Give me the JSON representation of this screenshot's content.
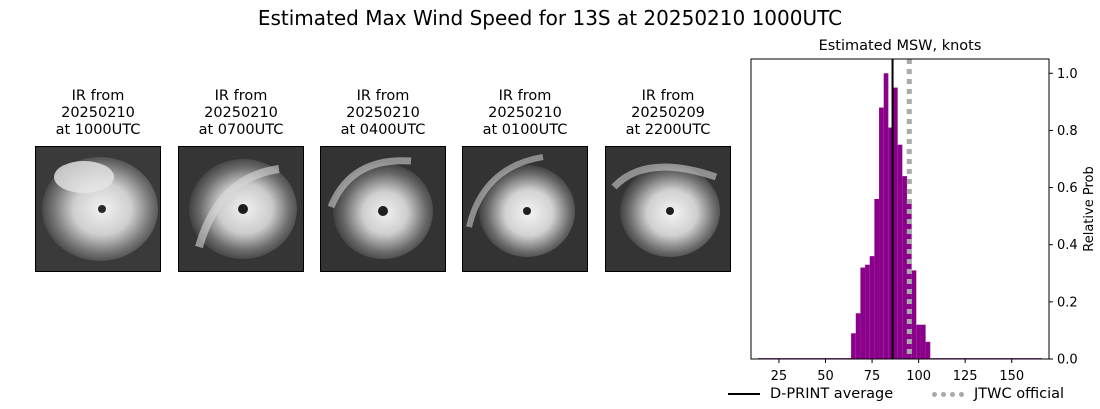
{
  "figure": {
    "title": "Estimated Max Wind Speed for 13S at 20250210 1000UTC"
  },
  "ir_panels": [
    {
      "caption": "IR from\n20250210\nat 1000UTC"
    },
    {
      "caption": "IR from\n20250210\nat 0700UTC"
    },
    {
      "caption": "IR from\n20250210\nat 0400UTC"
    },
    {
      "caption": "IR from\n20250210\nat 0100UTC"
    },
    {
      "caption": "IR from\n20250209\nat 2200UTC"
    }
  ],
  "chart_data": {
    "type": "bar",
    "title": "Estimated MSW, knots",
    "xlabel": "",
    "ylabel": "Relative Prob",
    "xlim": [
      10,
      170
    ],
    "ylim": [
      0,
      1.05
    ],
    "xticks": [
      25,
      50,
      75,
      100,
      125,
      150
    ],
    "yticks": [
      0.0,
      0.2,
      0.4,
      0.6,
      0.8,
      1.0
    ],
    "ytick_labels": [
      "0.0",
      "0.2",
      "0.4",
      "0.6",
      "0.8",
      "1.0"
    ],
    "y_axis_side": "right",
    "bin_width": 2.5,
    "bar_color": "#8b008b",
    "bins": [
      {
        "x": 15,
        "value": 0.003
      },
      {
        "x": 17.5,
        "value": 0.003
      },
      {
        "x": 20,
        "value": 0.003
      },
      {
        "x": 22.5,
        "value": 0.003
      },
      {
        "x": 25,
        "value": 0.003
      },
      {
        "x": 27.5,
        "value": 0.003
      },
      {
        "x": 30,
        "value": 0.003
      },
      {
        "x": 32.5,
        "value": 0.003
      },
      {
        "x": 35,
        "value": 0.003
      },
      {
        "x": 37.5,
        "value": 0.003
      },
      {
        "x": 40,
        "value": 0.003
      },
      {
        "x": 42.5,
        "value": 0.003
      },
      {
        "x": 45,
        "value": 0.003
      },
      {
        "x": 47.5,
        "value": 0.003
      },
      {
        "x": 50,
        "value": 0.003
      },
      {
        "x": 52.5,
        "value": 0.003
      },
      {
        "x": 55,
        "value": 0.003
      },
      {
        "x": 57.5,
        "value": 0.003
      },
      {
        "x": 60,
        "value": 0.003
      },
      {
        "x": 62.5,
        "value": 0.003
      },
      {
        "x": 65,
        "value": 0.09
      },
      {
        "x": 67.5,
        "value": 0.16
      },
      {
        "x": 70,
        "value": 0.32
      },
      {
        "x": 72.5,
        "value": 0.33
      },
      {
        "x": 75,
        "value": 0.36
      },
      {
        "x": 77.5,
        "value": 0.56
      },
      {
        "x": 80,
        "value": 0.88
      },
      {
        "x": 82.5,
        "value": 1.0
      },
      {
        "x": 85,
        "value": 0.81
      },
      {
        "x": 87.5,
        "value": 0.95
      },
      {
        "x": 90,
        "value": 0.75
      },
      {
        "x": 92.5,
        "value": 0.64
      },
      {
        "x": 95,
        "value": 0.56
      },
      {
        "x": 97.5,
        "value": 0.31
      },
      {
        "x": 100,
        "value": 0.12
      },
      {
        "x": 102.5,
        "value": 0.12
      },
      {
        "x": 105,
        "value": 0.06
      },
      {
        "x": 107.5,
        "value": 0.003
      },
      {
        "x": 110,
        "value": 0.003
      },
      {
        "x": 112.5,
        "value": 0.003
      },
      {
        "x": 115,
        "value": 0.003
      },
      {
        "x": 117.5,
        "value": 0.003
      },
      {
        "x": 120,
        "value": 0.003
      },
      {
        "x": 122.5,
        "value": 0.003
      },
      {
        "x": 125,
        "value": 0.003
      },
      {
        "x": 127.5,
        "value": 0.003
      },
      {
        "x": 130,
        "value": 0.003
      },
      {
        "x": 132.5,
        "value": 0.003
      },
      {
        "x": 135,
        "value": 0.003
      },
      {
        "x": 137.5,
        "value": 0.003
      },
      {
        "x": 140,
        "value": 0.003
      },
      {
        "x": 142.5,
        "value": 0.003
      },
      {
        "x": 145,
        "value": 0.003
      },
      {
        "x": 147.5,
        "value": 0.003
      },
      {
        "x": 150,
        "value": 0.003
      },
      {
        "x": 152.5,
        "value": 0.003
      },
      {
        "x": 155,
        "value": 0.003
      },
      {
        "x": 157.5,
        "value": 0.003
      },
      {
        "x": 160,
        "value": 0.003
      },
      {
        "x": 162.5,
        "value": 0.003
      },
      {
        "x": 165,
        "value": 0.003
      }
    ],
    "reference_lines": [
      {
        "name": "D-PRINT average",
        "x": 86,
        "color": "#000000",
        "style": "solid"
      },
      {
        "name": "JTWC official",
        "x": 95,
        "color": "#aaaaaa",
        "style": "dotted"
      }
    ],
    "legend_placement": "bottom"
  }
}
